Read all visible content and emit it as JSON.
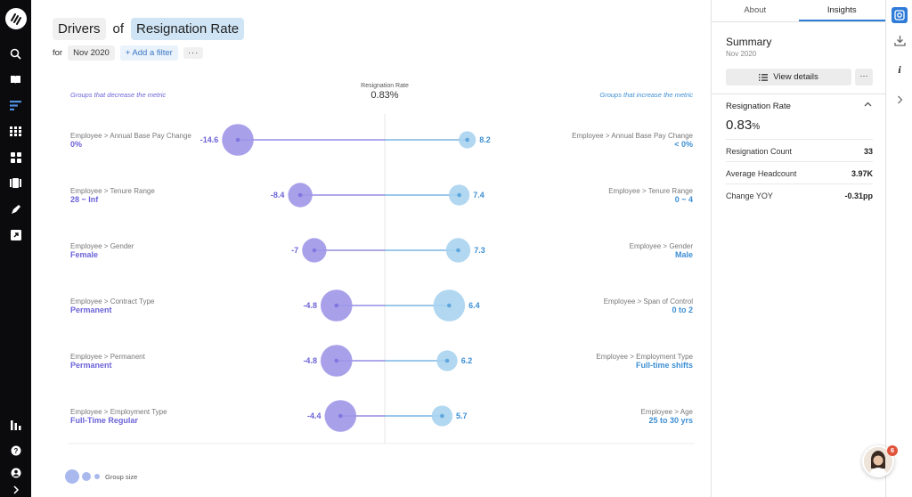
{
  "title": {
    "word_drivers": "Drivers",
    "word_of": "of",
    "metric": "Resignation Rate"
  },
  "filter": {
    "for_label": "for",
    "date": "Nov 2020",
    "add_filter": "+ Add a filter",
    "more": "···"
  },
  "chart_data": {
    "type": "dumbbell",
    "center_title": "Resignation Rate",
    "center_value": "0.83%",
    "left_caption": "Groups that decrease the metric",
    "right_caption": "Groups that increase the metric",
    "legend_label": "Group size",
    "rows": [
      {
        "left_path": "Employee > Annual Base Pay Change",
        "left_value_label": "0%",
        "left": -14.6,
        "left_size": 3,
        "right_path": "Employee > Annual Base Pay Change",
        "right_value_label": "< 0%",
        "right": 8.2,
        "right_size": 1
      },
      {
        "left_path": "Employee > Tenure Range",
        "left_value_label": "28 ~ Inf",
        "left": -8.4,
        "left_size": 2,
        "right_path": "Employee > Tenure Range",
        "right_value_label": "0 ~ 4",
        "right": 7.4,
        "right_size": 1.5
      },
      {
        "left_path": "Employee > Gender",
        "left_value_label": "Female",
        "left": -7,
        "left_size": 2,
        "right_path": "Employee > Gender",
        "right_value_label": "Male",
        "right": 7.3,
        "right_size": 2
      },
      {
        "left_path": "Employee > Contract Type",
        "left_value_label": "Permanent",
        "left": -4.8,
        "left_size": 3,
        "right_path": "Employee > Span of Control",
        "right_value_label": "0 to 2",
        "right": 6.4,
        "right_size": 3
      },
      {
        "left_path": "Employee > Permanent",
        "left_value_label": "Permanent",
        "left": -4.8,
        "left_size": 3,
        "right_path": "Employee > Employment Type",
        "right_value_label": "Full-time shifts",
        "right": 6.2,
        "right_size": 1.5
      },
      {
        "left_path": "Employee > Employment Type",
        "left_value_label": "Full-Time Regular",
        "left": -4.4,
        "left_size": 3,
        "right_path": "Employee > Age",
        "right_value_label": "25 to 30 yrs",
        "right": 5.7,
        "right_size": 1.5
      }
    ],
    "colors": {
      "decrease": "#9f97e8",
      "decrease_line": "#7f76e0",
      "increase": "#a9d3ef",
      "increase_line": "#5fa7dd",
      "left_label": "#6b63d8",
      "right_label": "#3d8fd4"
    }
  },
  "panel": {
    "tabs": [
      "About",
      "Insights"
    ],
    "summary_title": "Summary",
    "summary_sub": "Nov 2020",
    "view_details": "View details",
    "more": "···",
    "metric_header": "Resignation Rate",
    "metric_value": "0.83",
    "metric_unit": "%",
    "rows": [
      {
        "label": "Resignation Count",
        "value": "33"
      },
      {
        "label": "Average Headcount",
        "value": "3.97K"
      },
      {
        "label": "Change YOY",
        "value": "-0.31pp"
      }
    ]
  },
  "notifications": {
    "count": "6"
  }
}
